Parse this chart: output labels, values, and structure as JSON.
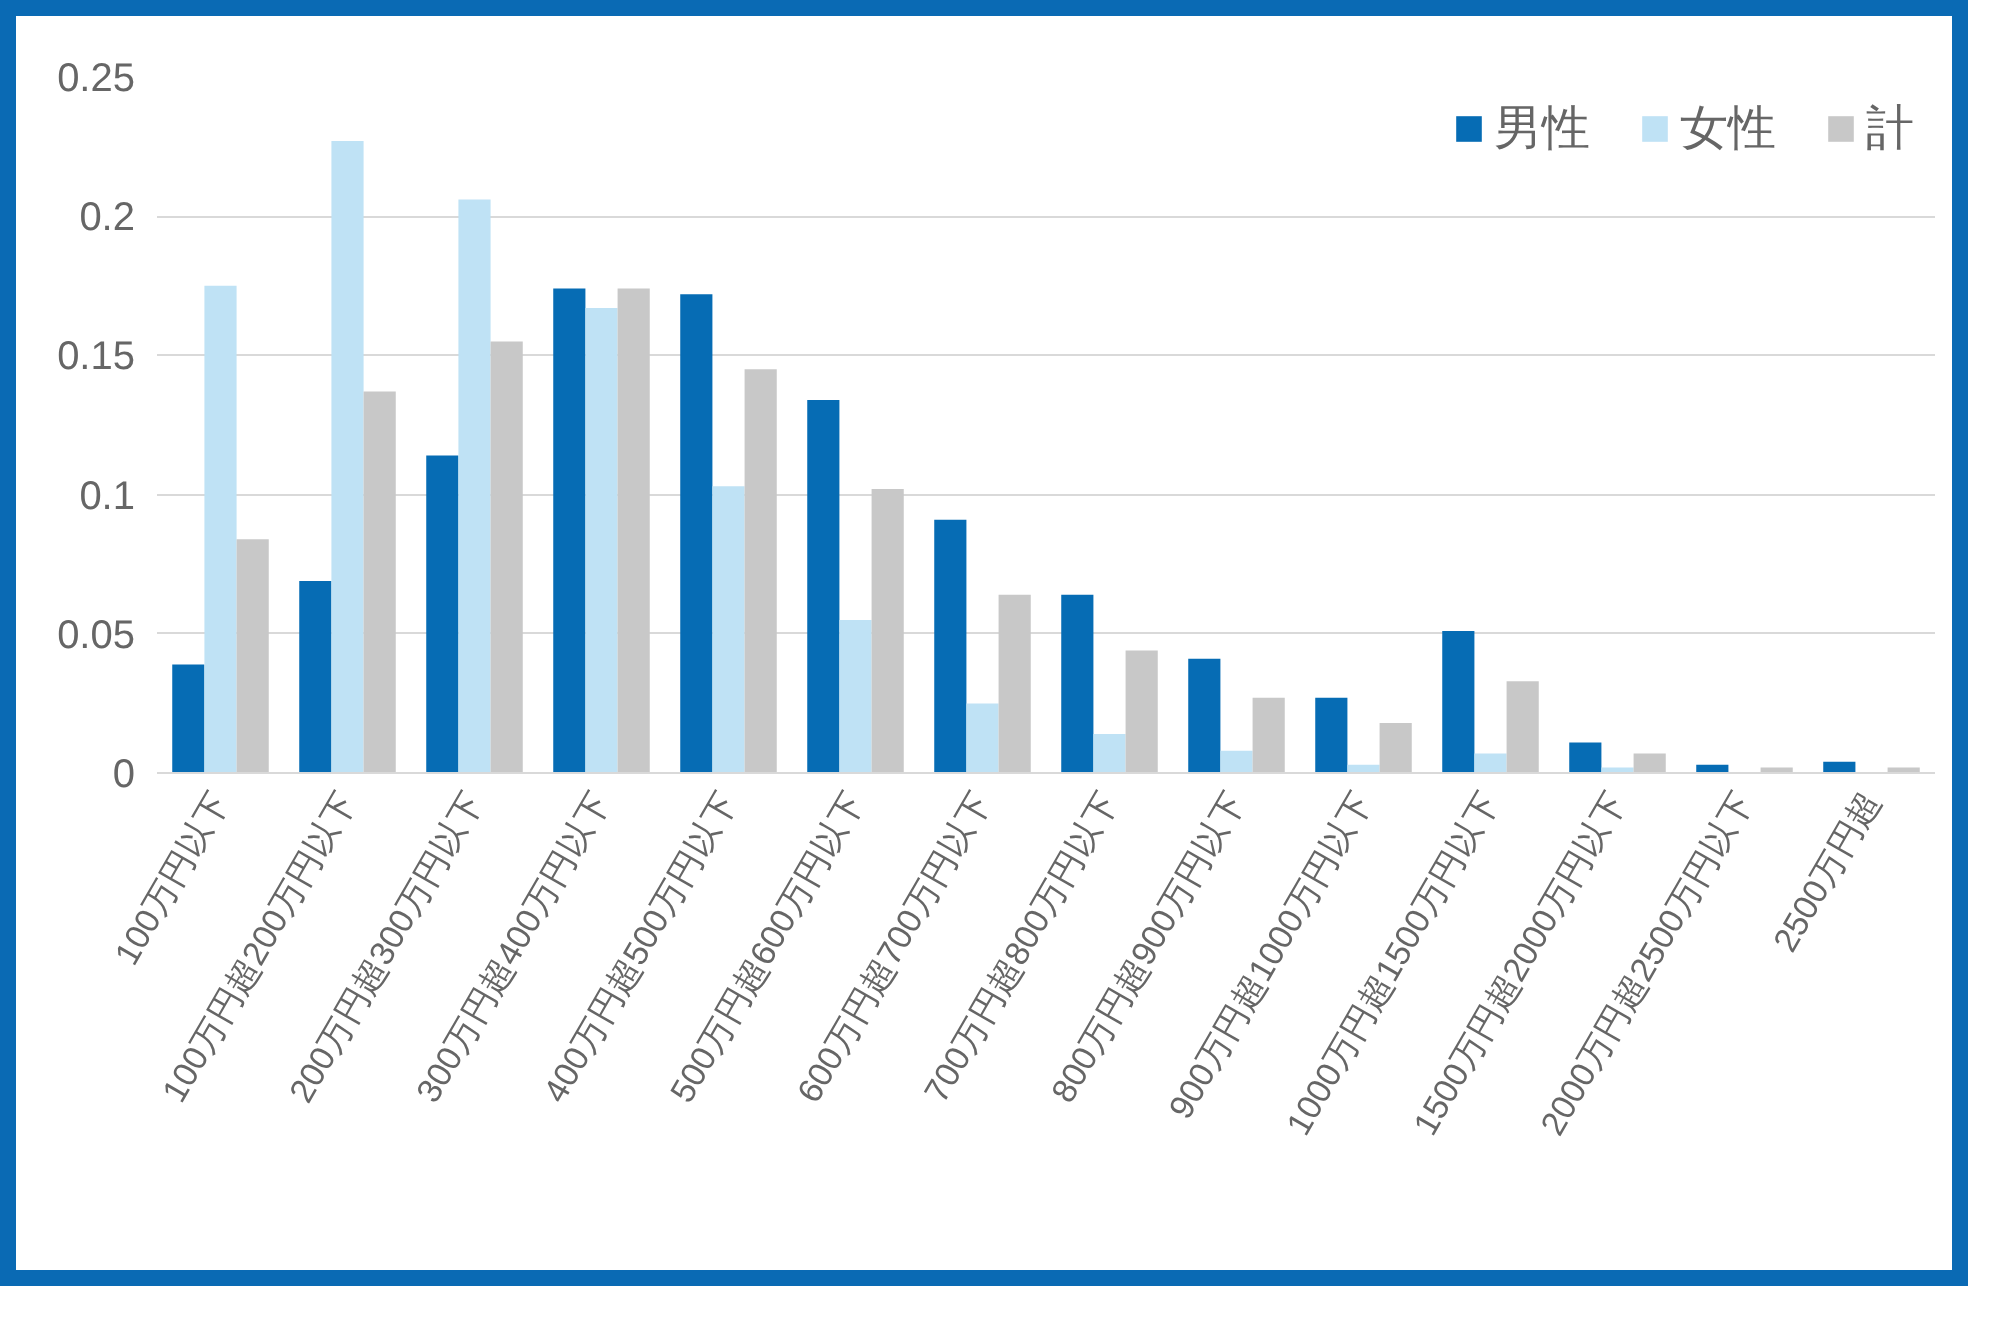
{
  "chart_data": {
    "type": "bar",
    "categories": [
      "100万円以下",
      "100万円超200万円以下",
      "200万円超300万円以下",
      "300万円超400万円以下",
      "400万円超500万円以下",
      "500万円超600万円以下",
      "600万円超700万円以下",
      "700万円超800万円以下",
      "800万円超900万円以下",
      "900万円超1000万円以下",
      "1000万円超1500万円以下",
      "1500万円超2000万円以下",
      "2000万円超2500万円以下",
      "2500万円超"
    ],
    "series": [
      {
        "name": "男性",
        "color": "#066cb4",
        "values": [
          0.039,
          0.069,
          0.114,
          0.174,
          0.172,
          0.134,
          0.091,
          0.064,
          0.041,
          0.027,
          0.051,
          0.011,
          0.003,
          0.004
        ]
      },
      {
        "name": "女性",
        "color": "#bfe2f5",
        "values": [
          0.175,
          0.227,
          0.206,
          0.167,
          0.103,
          0.055,
          0.025,
          0.014,
          0.008,
          0.003,
          0.007,
          0.002,
          0,
          0
        ]
      },
      {
        "name": "計",
        "color": "#c8c8c8",
        "values": [
          0.084,
          0.137,
          0.155,
          0.174,
          0.145,
          0.102,
          0.064,
          0.044,
          0.027,
          0.018,
          0.033,
          0.007,
          0.002,
          0.002
        ]
      }
    ],
    "ylim": [
      0,
      0.25
    ],
    "yticks": [
      0,
      0.05,
      0.1,
      0.15,
      0.2,
      0.25
    ],
    "grid": "y",
    "legend": "top right"
  }
}
